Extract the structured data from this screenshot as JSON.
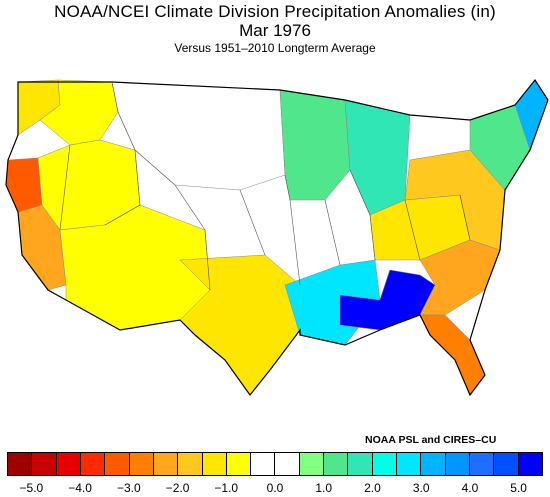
{
  "title": "NOAA/NCEI Climate Division Precipitation Anomalies (in)",
  "subtitle": "Mar 1976",
  "subtitle2": "Versus 1951–2010 Longterm Average",
  "credit": "NOAA PSL and CIRES–CU",
  "colorbar": {
    "colors": [
      "#9e0000",
      "#c80000",
      "#e60000",
      "#ff2a00",
      "#ff5a00",
      "#ff7f00",
      "#ffa51e",
      "#ffc81e",
      "#ffe600",
      "#ffff00",
      "#ffffff",
      "#ffffff",
      "#80ff80",
      "#50e68c",
      "#30e6b4",
      "#00ffe6",
      "#00e6ff",
      "#00b4ff",
      "#0096ff",
      "#1e6eff",
      "#0050ff",
      "#0000ff"
    ],
    "tick_labels": [
      "−5.0",
      "−4.0",
      "−3.0",
      "−2.0",
      "−1.0",
      "0.0",
      "1.0",
      "2.0",
      "3.0",
      "4.0",
      "5.0"
    ]
  },
  "map": {
    "regions": [
      {
        "name": "pacific-northwest-coast",
        "color": "#ffe600"
      },
      {
        "name": "oregon-inland",
        "color": "#ffff00"
      },
      {
        "name": "northern-california-coast-anomaly",
        "color": "#ff5a00"
      },
      {
        "name": "california-sierra",
        "color": "#ffa51e"
      },
      {
        "name": "great-basin",
        "color": "#ffff00"
      },
      {
        "name": "southwest",
        "color": "#ffff00"
      },
      {
        "name": "texas-south",
        "color": "#ffe600"
      },
      {
        "name": "northern-plains",
        "color": "#ffffff"
      },
      {
        "name": "upper-midwest",
        "color": "#50e68c"
      },
      {
        "name": "great-lakes",
        "color": "#30e6b4"
      },
      {
        "name": "ohio-valley",
        "color": "#ffe600"
      },
      {
        "name": "lower-mississippi",
        "color": "#00e6ff"
      },
      {
        "name": "deep-south-max",
        "color": "#0000ff"
      },
      {
        "name": "georgia-carolinas",
        "color": "#ffa51e"
      },
      {
        "name": "florida",
        "color": "#ff7f00"
      },
      {
        "name": "mid-atlantic",
        "color": "#ffc81e"
      },
      {
        "name": "new-england",
        "color": "#50e68c"
      },
      {
        "name": "maine",
        "color": "#00b4ff"
      }
    ]
  }
}
